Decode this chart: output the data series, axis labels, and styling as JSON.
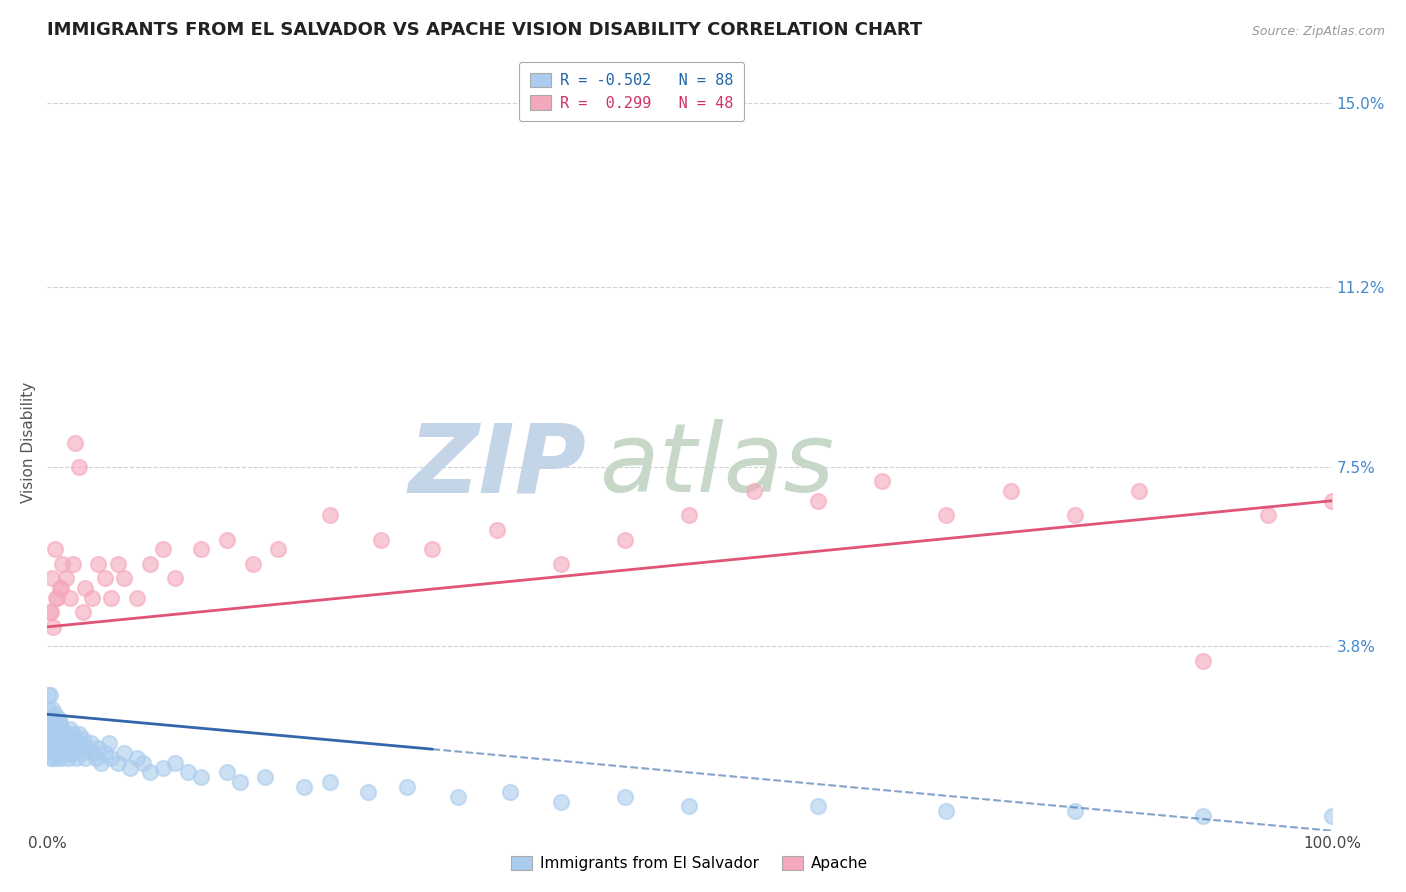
{
  "title": "IMMIGRANTS FROM EL SALVADOR VS APACHE VISION DISABILITY CORRELATION CHART",
  "source_text": "Source: ZipAtlas.com",
  "ylabel": "Vision Disability",
  "xlim": [
    0,
    100
  ],
  "ylim": [
    0,
    16.0
  ],
  "yticks_right": [
    3.8,
    7.5,
    11.2,
    15.0
  ],
  "ytick_labels_right": [
    "3.8%",
    "7.5%",
    "11.2%",
    "15.0%"
  ],
  "xtick_labels": [
    "0.0%",
    "100.0%"
  ],
  "legend_label1": "Immigrants from El Salvador",
  "legend_label2": "Apache",
  "series1_color": "#aaccee",
  "series2_color": "#f4a8bc",
  "trendline1_color": "#3366aa",
  "trendline2_color": "#e05575",
  "trendline1_solid_end": 30,
  "watermark_zip": "ZIP",
  "watermark_atlas": "atlas",
  "watermark_color_zip": "#c5d5e8",
  "watermark_color_atlas": "#c8d8c8",
  "grid_color": "#cccccc",
  "background_color": "#ffffff",
  "title_fontsize": 13,
  "series1_x": [
    0.1,
    0.15,
    0.2,
    0.2,
    0.25,
    0.3,
    0.35,
    0.4,
    0.4,
    0.45,
    0.5,
    0.5,
    0.5,
    0.6,
    0.6,
    0.65,
    0.7,
    0.7,
    0.75,
    0.8,
    0.8,
    0.85,
    0.9,
    0.9,
    0.95,
    1.0,
    1.0,
    1.0,
    1.1,
    1.1,
    1.2,
    1.2,
    1.3,
    1.3,
    1.4,
    1.5,
    1.5,
    1.6,
    1.7,
    1.8,
    1.9,
    2.0,
    2.0,
    2.1,
    2.2,
    2.3,
    2.5,
    2.5,
    2.7,
    2.8,
    3.0,
    3.2,
    3.4,
    3.6,
    3.8,
    4.0,
    4.2,
    4.5,
    4.8,
    5.0,
    5.5,
    6.0,
    6.5,
    7.0,
    7.5,
    8.0,
    9.0,
    10.0,
    11.0,
    12.0,
    14.0,
    15.0,
    17.0,
    20.0,
    22.0,
    25.0,
    28.0,
    32.0,
    36.0,
    40.0,
    45.0,
    50.0,
    60.0,
    70.0,
    80.0,
    90.0,
    100.0,
    0.1
  ],
  "series1_y": [
    2.5,
    2.0,
    1.8,
    2.8,
    2.2,
    1.5,
    2.0,
    2.5,
    1.7,
    2.1,
    1.8,
    2.3,
    1.5,
    2.0,
    2.4,
    1.6,
    1.9,
    2.2,
    1.8,
    2.1,
    1.5,
    1.9,
    2.3,
    1.7,
    2.0,
    1.6,
    2.2,
    1.8,
    2.0,
    1.5,
    1.8,
    2.1,
    1.7,
    1.9,
    2.0,
    1.6,
    1.8,
    1.5,
    1.7,
    2.1,
    1.8,
    1.6,
    2.0,
    1.7,
    1.9,
    1.5,
    1.8,
    2.0,
    1.6,
    1.9,
    1.5,
    1.7,
    1.8,
    1.6,
    1.5,
    1.7,
    1.4,
    1.6,
    1.8,
    1.5,
    1.4,
    1.6,
    1.3,
    1.5,
    1.4,
    1.2,
    1.3,
    1.4,
    1.2,
    1.1,
    1.2,
    1.0,
    1.1,
    0.9,
    1.0,
    0.8,
    0.9,
    0.7,
    0.8,
    0.6,
    0.7,
    0.5,
    0.5,
    0.4,
    0.4,
    0.3,
    0.3,
    2.8
  ],
  "series2_x": [
    0.2,
    0.4,
    0.5,
    0.6,
    0.8,
    1.0,
    1.2,
    1.5,
    1.8,
    2.0,
    2.2,
    2.5,
    2.8,
    3.0,
    3.5,
    4.0,
    4.5,
    5.0,
    5.5,
    6.0,
    7.0,
    8.0,
    9.0,
    10.0,
    12.0,
    14.0,
    16.0,
    18.0,
    22.0,
    26.0,
    30.0,
    35.0,
    40.0,
    45.0,
    50.0,
    55.0,
    60.0,
    65.0,
    70.0,
    75.0,
    80.0,
    85.0,
    90.0,
    95.0,
    100.0,
    0.3,
    0.7,
    1.1
  ],
  "series2_y": [
    4.5,
    5.2,
    4.2,
    5.8,
    4.8,
    5.0,
    5.5,
    5.2,
    4.8,
    5.5,
    8.0,
    7.5,
    4.5,
    5.0,
    4.8,
    5.5,
    5.2,
    4.8,
    5.5,
    5.2,
    4.8,
    5.5,
    5.8,
    5.2,
    5.8,
    6.0,
    5.5,
    5.8,
    6.5,
    6.0,
    5.8,
    6.2,
    5.5,
    6.0,
    6.5,
    7.0,
    6.8,
    7.2,
    6.5,
    7.0,
    6.5,
    7.0,
    3.5,
    6.5,
    6.8,
    4.5,
    4.8,
    5.0
  ],
  "trendline1_x_start": 0,
  "trendline1_x_end": 100,
  "trendline1_y_start": 2.4,
  "trendline1_y_end": 0.0,
  "trendline2_x_start": 0,
  "trendline2_x_end": 100,
  "trendline2_y_start": 4.2,
  "trendline2_y_end": 6.8
}
